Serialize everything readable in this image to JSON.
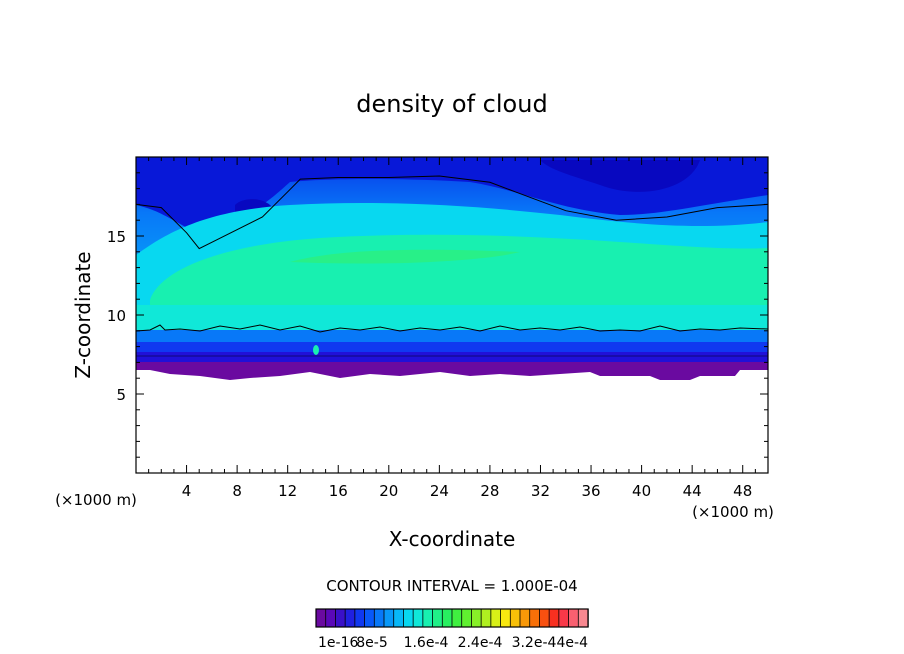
{
  "chart_data": {
    "type": "heatmap",
    "title": "density of cloud",
    "xlabel": "X-coordinate",
    "ylabel": "Z-coordinate",
    "x_unit": "(×1000 m)",
    "y_unit": "(×1000 m)",
    "xlim": [
      0,
      50
    ],
    "ylim": [
      0,
      20
    ],
    "x_ticks": [
      4,
      8,
      12,
      16,
      20,
      24,
      28,
      32,
      36,
      40,
      44,
      48
    ],
    "x_tick_labels": [
      "4",
      "8",
      "12",
      "16",
      "20",
      "24",
      "28",
      "32",
      "36",
      "40",
      "44",
      "48"
    ],
    "y_ticks": [
      5,
      10,
      15
    ],
    "y_tick_labels": [
      "5",
      "10",
      "15"
    ],
    "contour_interval_label": "CONTOUR INTERVAL = 1.000E-04",
    "colorbar_labels": [
      "1e-16",
      "8e-5",
      "1.6e-4",
      "2.4e-4",
      "3.2e-4",
      "4e-4"
    ],
    "colorbar_colors": [
      "#6a0aa0",
      "#5a08b8",
      "#3a10c8",
      "#2020e0",
      "#1038f0",
      "#0858f8",
      "#0878f8",
      "#0898f8",
      "#08b8f8",
      "#08d8f0",
      "#10e8d8",
      "#18f0b0",
      "#20f088",
      "#28f060",
      "#40f040",
      "#60f030",
      "#88f028",
      "#b0f020",
      "#d8f018",
      "#f8e810",
      "#f8c008",
      "#f89808",
      "#f87008",
      "#f85010",
      "#f83020",
      "#f83848",
      "#f86070",
      "#f88890"
    ],
    "bands": {
      "cloud_base_km": 6.5,
      "lower_contour_top_km": 9,
      "upper_contour_km": 17,
      "x_profile_upper": [
        [
          0,
          17
        ],
        [
          2,
          16.8
        ],
        [
          4,
          15.2
        ],
        [
          5,
          14.2
        ],
        [
          6,
          14.6
        ],
        [
          10,
          16.2
        ],
        [
          12,
          17.8
        ],
        [
          13,
          18.6
        ],
        [
          16,
          18.7
        ],
        [
          20,
          18.7
        ],
        [
          24,
          18.8
        ],
        [
          28,
          18.4
        ],
        [
          30,
          17.8
        ],
        [
          34,
          16.6
        ],
        [
          38,
          16
        ],
        [
          42,
          16.2
        ],
        [
          46,
          16.8
        ],
        [
          50,
          17
        ]
      ]
    }
  }
}
